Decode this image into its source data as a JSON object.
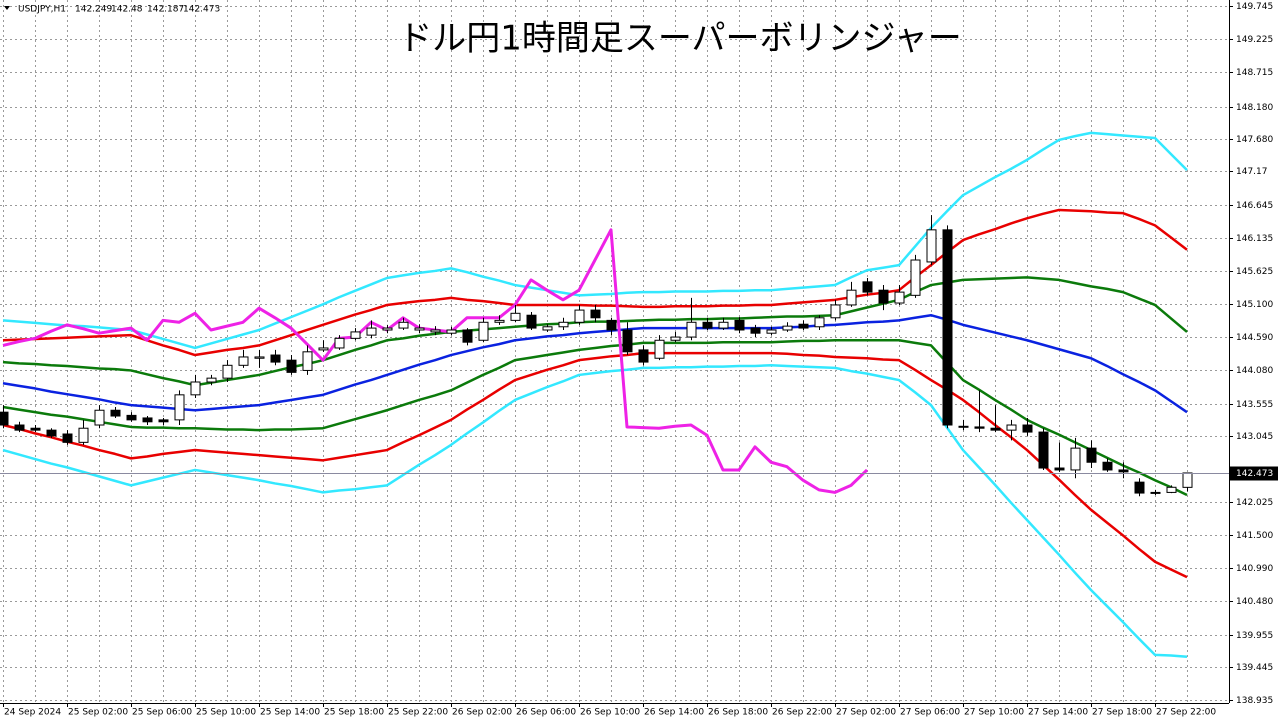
{
  "chart_data": {
    "type": "candlestick",
    "title": "ドル円1時間足スーパーボリンジャー",
    "symbol": "USDJPY,H1",
    "categories": [
      "24 Sep 2024",
      null,
      null,
      null,
      "25 Sep 02:00",
      null,
      null,
      null,
      "25 Sep 06:00",
      null,
      null,
      null,
      "25 Sep 10:00",
      null,
      null,
      null,
      "25 Sep 14:00",
      null,
      null,
      null,
      "25 Sep 18:00",
      null,
      null,
      null,
      "25 Sep 22:00",
      null,
      null,
      null,
      "26 Sep 02:00",
      null,
      null,
      null,
      "26 Sep 06:00",
      null,
      null,
      null,
      "26 Sep 10:00",
      null,
      null,
      null,
      "26 Sep 14:00",
      null,
      null,
      null,
      "26 Sep 18:00",
      null,
      null,
      null,
      "26 Sep 22:00",
      null,
      null,
      null,
      "27 Sep 02:00",
      null,
      null,
      null,
      "27 Sep 06:00",
      null,
      null,
      null,
      "27 Sep 10:00",
      null,
      null,
      null,
      "27 Sep 14:00",
      null,
      null,
      null,
      "27 Sep 18:00",
      null,
      null,
      null,
      "27 Sep 22:00",
      null,
      null
    ],
    "open": [
      143.42,
      143.22,
      143.17,
      143.14,
      143.08,
      142.95,
      143.22,
      143.45,
      143.37,
      143.33,
      143.3,
      143.3,
      143.69,
      143.89,
      143.95,
      144.15,
      144.26,
      144.31,
      144.23,
      144.07,
      144.39,
      144.42,
      144.57,
      144.62,
      144.7,
      144.73,
      144.7,
      144.67,
      144.65,
      144.7,
      144.54,
      144.82,
      144.85,
      144.93,
      144.7,
      144.75,
      144.82,
      145.01,
      144.85,
      144.7,
      144.39,
      144.26,
      144.54,
      144.59,
      144.82,
      144.73,
      144.85,
      144.73,
      144.65,
      144.7,
      144.79,
      144.75,
      144.89,
      145.09,
      145.45,
      145.32,
      145.12,
      145.24,
      145.76,
      146.26,
      143.2,
      143.19,
      143.17,
      143.14,
      143.22,
      143.11,
      142.55,
      142.52,
      142.86,
      142.64,
      142.52,
      142.33,
      142.17,
      142.17,
      142.249
    ],
    "high": [
      143.53,
      143.27,
      143.22,
      143.17,
      143.14,
      143.3,
      143.53,
      143.5,
      143.42,
      143.36,
      143.33,
      143.76,
      144.0,
      144.0,
      144.23,
      144.39,
      144.39,
      144.39,
      144.31,
      144.46,
      144.54,
      144.62,
      144.73,
      144.85,
      144.78,
      144.89,
      144.79,
      144.76,
      144.75,
      144.73,
      144.89,
      144.93,
      145.09,
      144.98,
      144.79,
      144.89,
      145.09,
      145.09,
      144.89,
      144.82,
      144.46,
      144.62,
      144.67,
      145.2,
      144.89,
      144.89,
      144.9,
      144.78,
      144.75,
      144.82,
      144.85,
      144.93,
      145.17,
      145.45,
      145.51,
      145.4,
      145.4,
      145.87,
      146.49,
      146.33,
      143.3,
      143.76,
      143.53,
      143.3,
      143.33,
      143.17,
      142.95,
      143.02,
      142.98,
      142.7,
      142.64,
      142.39,
      142.21,
      142.28,
      142.48
    ],
    "low": [
      143.17,
      143.11,
      143.11,
      143.02,
      142.91,
      142.91,
      143.17,
      143.33,
      143.27,
      143.22,
      143.22,
      143.22,
      143.64,
      143.84,
      143.89,
      144.11,
      144.11,
      144.15,
      144.0,
      144.0,
      144.36,
      144.39,
      144.54,
      144.57,
      144.65,
      144.7,
      144.65,
      144.62,
      144.62,
      144.46,
      144.51,
      144.78,
      144.82,
      144.7,
      144.67,
      144.7,
      144.78,
      144.82,
      144.62,
      144.31,
      144.15,
      144.23,
      144.51,
      144.54,
      144.7,
      144.7,
      144.65,
      144.59,
      144.62,
      144.67,
      144.7,
      144.7,
      144.85,
      145.06,
      145.24,
      145.01,
      145.09,
      145.2,
      145.71,
      143.17,
      143.14,
      143.11,
      143.11,
      142.98,
      143.05,
      142.52,
      142.49,
      142.39,
      142.55,
      142.49,
      142.39,
      142.11,
      142.13,
      142.16,
      142.187
    ],
    "close": [
      143.22,
      143.14,
      143.14,
      143.05,
      142.95,
      143.17,
      143.45,
      143.36,
      143.3,
      143.27,
      143.27,
      143.69,
      143.89,
      143.95,
      144.15,
      144.28,
      144.28,
      144.2,
      144.04,
      144.36,
      144.42,
      144.57,
      144.67,
      144.73,
      144.73,
      144.82,
      144.73,
      144.7,
      144.7,
      144.51,
      144.82,
      144.85,
      144.96,
      144.73,
      144.75,
      144.82,
      145.01,
      144.89,
      144.7,
      144.36,
      144.2,
      144.54,
      144.59,
      144.82,
      144.73,
      144.82,
      144.7,
      144.65,
      144.7,
      144.76,
      144.73,
      144.89,
      145.09,
      145.32,
      145.29,
      145.12,
      145.29,
      145.79,
      146.26,
      143.22,
      143.19,
      143.17,
      143.14,
      143.22,
      143.11,
      142.55,
      142.52,
      142.86,
      142.64,
      142.52,
      142.49,
      142.16,
      142.16,
      142.25,
      142.473
    ],
    "series": [
      {
        "color": "#33e8ff",
        "values": [
          144.85,
          144.83,
          144.81,
          144.79,
          144.77,
          144.76,
          144.74,
          144.72,
          144.7,
          144.63,
          144.56,
          144.49,
          144.42,
          144.49,
          144.56,
          144.63,
          144.7,
          144.8,
          144.9,
          145.0,
          145.1,
          145.21,
          145.31,
          145.41,
          145.51,
          145.55,
          145.59,
          145.62,
          145.66,
          145.6,
          145.53,
          145.47,
          145.4,
          145.36,
          145.32,
          145.28,
          145.24,
          145.25,
          145.26,
          145.28,
          145.29,
          145.29,
          145.3,
          145.3,
          145.3,
          145.31,
          145.31,
          145.32,
          145.32,
          145.34,
          145.36,
          145.38,
          145.4,
          145.52,
          145.63,
          145.67,
          145.71,
          146.0,
          146.29,
          146.55,
          146.8,
          146.94,
          147.08,
          147.21,
          147.35,
          147.51,
          147.66,
          147.72,
          147.77,
          147.75,
          147.73,
          147.71,
          147.69,
          147.44,
          147.19
        ]
      },
      {
        "color": "#e80000",
        "values": [
          144.54,
          144.55,
          144.56,
          144.57,
          144.58,
          144.59,
          144.6,
          144.61,
          144.62,
          144.54,
          144.46,
          144.39,
          144.31,
          144.35,
          144.39,
          144.42,
          144.46,
          144.54,
          144.62,
          144.7,
          144.78,
          144.86,
          144.94,
          145.01,
          145.09,
          145.12,
          145.15,
          145.17,
          145.2,
          145.17,
          145.15,
          145.12,
          145.09,
          145.09,
          145.09,
          145.09,
          145.09,
          145.08,
          145.08,
          145.07,
          145.06,
          145.06,
          145.07,
          145.07,
          145.07,
          145.08,
          145.08,
          145.09,
          145.09,
          145.11,
          145.13,
          145.15,
          145.17,
          145.21,
          145.25,
          145.28,
          145.32,
          145.52,
          145.71,
          145.91,
          146.1,
          146.19,
          146.27,
          146.36,
          146.44,
          146.51,
          146.57,
          146.56,
          146.55,
          146.53,
          146.52,
          146.43,
          146.33,
          146.14,
          145.95
        ]
      },
      {
        "color": "#0b7a0b",
        "values": [
          144.2,
          144.18,
          144.17,
          144.15,
          144.14,
          144.12,
          144.1,
          144.09,
          144.07,
          144.01,
          143.95,
          143.9,
          143.84,
          143.88,
          143.92,
          143.96,
          144.0,
          144.06,
          144.12,
          144.17,
          144.23,
          144.31,
          144.39,
          144.46,
          144.54,
          144.57,
          144.61,
          144.64,
          144.67,
          144.69,
          144.71,
          144.73,
          144.75,
          144.77,
          144.79,
          144.8,
          144.82,
          144.83,
          144.83,
          144.84,
          144.85,
          144.86,
          144.86,
          144.87,
          144.87,
          144.88,
          144.88,
          144.89,
          144.9,
          144.91,
          144.91,
          144.92,
          144.93,
          144.99,
          145.05,
          145.11,
          145.17,
          145.29,
          145.4,
          145.44,
          145.48,
          145.49,
          145.5,
          145.51,
          145.52,
          145.5,
          145.48,
          145.43,
          145.38,
          145.34,
          145.29,
          145.19,
          145.09,
          144.88,
          144.67
        ]
      },
      {
        "color": "#0a22e0",
        "values": [
          143.87,
          143.83,
          143.79,
          143.74,
          143.7,
          143.66,
          143.62,
          143.57,
          143.53,
          143.51,
          143.49,
          143.47,
          143.45,
          143.47,
          143.49,
          143.51,
          143.53,
          143.57,
          143.61,
          143.65,
          143.69,
          143.77,
          143.85,
          143.92,
          144.0,
          144.08,
          144.16,
          144.23,
          144.31,
          144.37,
          144.43,
          144.48,
          144.54,
          144.57,
          144.6,
          144.62,
          144.65,
          144.67,
          144.69,
          144.71,
          144.73,
          144.73,
          144.73,
          144.73,
          144.73,
          144.73,
          144.73,
          144.73,
          144.73,
          144.74,
          144.75,
          144.77,
          144.78,
          144.8,
          144.82,
          144.83,
          144.85,
          144.89,
          144.93,
          144.86,
          144.78,
          144.72,
          144.66,
          144.6,
          144.54,
          144.47,
          144.4,
          144.33,
          144.26,
          144.14,
          144.01,
          143.89,
          143.76,
          143.59,
          143.42
        ]
      },
      {
        "color": "#0b7a0b",
        "values": [
          143.5,
          143.46,
          143.42,
          143.38,
          143.35,
          143.31,
          143.27,
          143.23,
          143.19,
          143.18,
          143.18,
          143.17,
          143.17,
          143.16,
          143.15,
          143.15,
          143.14,
          143.15,
          143.15,
          143.16,
          143.17,
          143.24,
          143.31,
          143.38,
          143.45,
          143.53,
          143.61,
          143.68,
          143.76,
          143.88,
          144.0,
          144.11,
          144.23,
          144.27,
          144.31,
          144.35,
          144.39,
          144.42,
          144.45,
          144.47,
          144.5,
          144.5,
          144.5,
          144.5,
          144.5,
          144.51,
          144.51,
          144.51,
          144.51,
          144.52,
          144.53,
          144.53,
          144.54,
          144.54,
          144.54,
          144.54,
          144.54,
          144.5,
          144.46,
          144.19,
          143.92,
          143.77,
          143.61,
          143.46,
          143.3,
          143.18,
          143.07,
          142.95,
          142.83,
          142.71,
          142.59,
          142.48,
          142.36,
          142.25,
          142.13
        ]
      },
      {
        "color": "#e80000",
        "values": [
          143.22,
          143.16,
          143.09,
          143.03,
          142.96,
          142.9,
          142.83,
          142.77,
          142.7,
          142.73,
          142.77,
          142.8,
          142.83,
          142.81,
          142.79,
          142.77,
          142.75,
          142.73,
          142.71,
          142.69,
          142.67,
          142.71,
          142.75,
          142.79,
          142.83,
          142.95,
          143.06,
          143.18,
          143.3,
          143.46,
          143.61,
          143.77,
          143.92,
          144.0,
          144.08,
          144.15,
          144.23,
          144.26,
          144.29,
          144.31,
          144.34,
          144.34,
          144.34,
          144.34,
          144.34,
          144.34,
          144.34,
          144.34,
          144.34,
          144.33,
          144.31,
          144.3,
          144.28,
          144.27,
          144.26,
          144.24,
          144.23,
          144.08,
          143.92,
          143.77,
          143.61,
          143.42,
          143.22,
          143.03,
          142.83,
          142.6,
          142.37,
          142.13,
          141.9,
          141.7,
          141.5,
          141.29,
          141.09,
          140.97,
          140.85
        ]
      },
      {
        "color": "#33e8ff",
        "values": [
          142.83,
          142.76,
          142.69,
          142.62,
          142.56,
          142.49,
          142.42,
          142.35,
          142.28,
          142.34,
          142.4,
          142.46,
          142.52,
          142.48,
          142.44,
          142.4,
          142.36,
          142.31,
          142.27,
          142.22,
          142.17,
          142.2,
          142.22,
          142.25,
          142.28,
          142.44,
          142.6,
          142.75,
          142.91,
          143.09,
          143.26,
          143.44,
          143.61,
          143.71,
          143.81,
          143.9,
          144.0,
          144.03,
          144.06,
          144.08,
          144.11,
          144.11,
          144.12,
          144.12,
          144.13,
          144.13,
          144.14,
          144.14,
          144.15,
          144.14,
          144.13,
          144.12,
          144.11,
          144.06,
          144.02,
          143.97,
          143.92,
          143.73,
          143.53,
          143.18,
          142.83,
          142.56,
          142.29,
          142.01,
          141.74,
          141.47,
          141.2,
          140.92,
          140.65,
          140.4,
          140.15,
          139.89,
          139.64,
          139.63,
          139.61
        ]
      },
      {
        "color": "#ee22e6",
        "width": 3,
        "values": [
          144.46,
          144.52,
          144.57,
          144.68,
          144.78,
          144.72,
          144.65,
          144.69,
          144.73,
          144.54,
          144.85,
          144.82,
          144.96,
          144.7,
          144.76,
          144.82,
          145.04,
          144.89,
          144.73,
          144.48,
          144.23,
          144.57,
          144.59,
          144.82,
          144.7,
          144.89,
          144.73,
          144.7,
          144.67,
          144.89,
          144.89,
          144.89,
          145.09,
          145.48,
          145.32,
          145.17,
          145.32,
          145.79,
          146.26,
          143.19,
          143.18,
          143.17,
          143.2,
          143.22,
          143.06,
          142.52,
          142.52,
          142.88,
          142.64,
          142.57,
          142.36,
          142.21,
          142.17,
          142.28,
          142.52,
          null,
          null,
          null,
          null,
          null,
          null,
          null,
          null,
          null,
          null,
          null,
          null,
          null,
          null,
          null,
          null,
          null,
          null,
          null,
          null
        ]
      }
    ],
    "ylim": [
      138.89,
      149.84
    ],
    "yticks": [
      149.745,
      149.225,
      148.715,
      {
        "value": 148.18,
        "label": "148.180"
      },
      {
        "value": 147.68,
        "label": "147.680"
      },
      147.17,
      146.645,
      146.135,
      145.625,
      {
        "value": 145.1,
        "label": "145.100"
      },
      {
        "value": 144.59,
        "label": "144.590"
      },
      {
        "value": 144.08,
        "label": "144.080"
      },
      143.555,
      143.045,
      142.025,
      {
        "value": 141.5,
        "label": "141.500"
      },
      {
        "value": 140.99,
        "label": "140.990"
      },
      {
        "value": 140.48,
        "label": "140.480"
      },
      139.955,
      139.445,
      138.935
    ],
    "grid": true
  }
}
